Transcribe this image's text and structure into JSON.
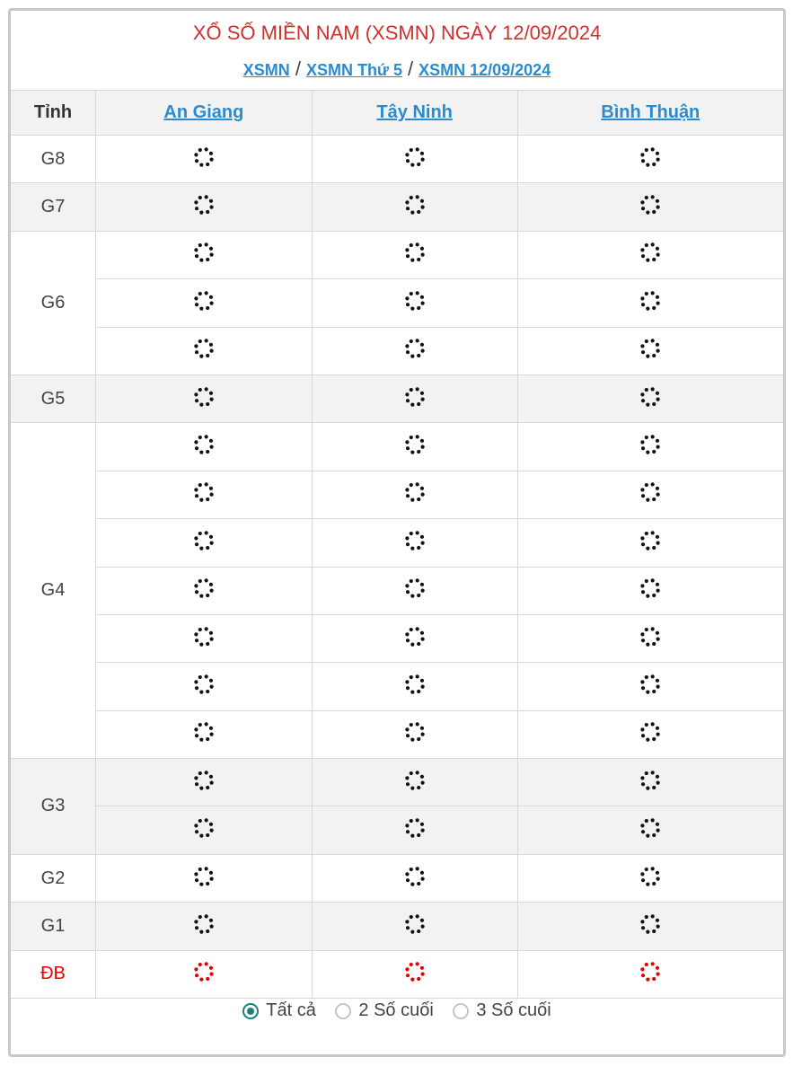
{
  "title": "XỔ SỐ MIỀN NAM (XSMN) NGÀY 12/09/2024",
  "breadcrumb": [
    "XSMN",
    "XSMN Thứ 5",
    "XSMN 12/09/2024"
  ],
  "breadcrumb_sep": "/",
  "table": {
    "header_label": "Tỉnh",
    "provinces": [
      "An Giang",
      "Tây Ninh",
      "Bình Thuận"
    ],
    "prizes": [
      {
        "label": "G8",
        "rows": 1
      },
      {
        "label": "G7",
        "rows": 1
      },
      {
        "label": "G6",
        "rows": 3
      },
      {
        "label": "G5",
        "rows": 1
      },
      {
        "label": "G4",
        "rows": 7
      },
      {
        "label": "G3",
        "rows": 2
      },
      {
        "label": "G2",
        "rows": 1
      },
      {
        "label": "G1",
        "rows": 1
      },
      {
        "label": "ĐB",
        "rows": 1
      }
    ],
    "cell_state": "loading-spinner-icon"
  },
  "filter": {
    "options": [
      "Tất cả",
      "2 Số cuối",
      "3 Số cuối"
    ],
    "selected": 0
  },
  "colors": {
    "title": "#d0312d",
    "link": "#2a8ccf",
    "special": "#e00000",
    "radio": "#1b7f7a"
  }
}
